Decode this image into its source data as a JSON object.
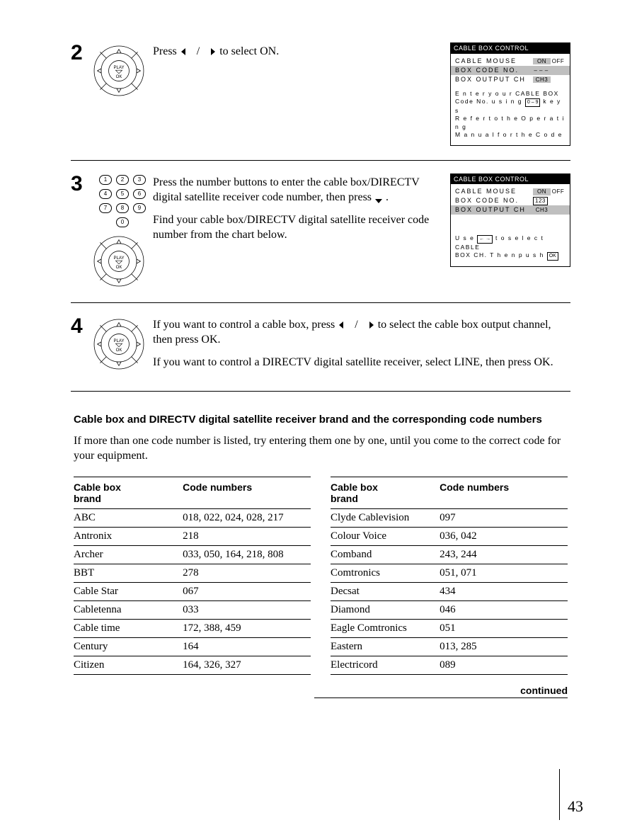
{
  "steps": {
    "s2": {
      "num": "2",
      "text1_a": "Press ",
      "text1_b": " to select ON.",
      "separator": "/"
    },
    "s3": {
      "num": "3",
      "text1_a": "Press the number buttons to enter the cable box/DIRECTV digital satellite receiver code number, then press ",
      "text1_b": ".",
      "text2": "Find your cable box/DIRECTV digital satellite receiver code number from the chart below."
    },
    "s4": {
      "num": "4",
      "text1_a": "If you want to control a cable box, press ",
      "text1_b": " to select the cable box output channel, then press OK.",
      "separator": "/",
      "text2": "If you want to control a DIRECTV digital satellite receiver, select LINE, then press OK."
    }
  },
  "screens": {
    "a": {
      "title": "CABLE  BOX  CONTROL",
      "rows": [
        {
          "label": "CABLE  MOUSE",
          "v1": "ON",
          "v2": "OFF",
          "hl": false,
          "hl_v1": true
        },
        {
          "label": "BOX  CODE  NO.",
          "v1": "– – –",
          "v2": "",
          "hl": true,
          "hl_v1": false
        },
        {
          "label": "BOX  OUTPUT  CH",
          "v1": "CH3",
          "v2": "",
          "hl": false,
          "hl_v1": true
        }
      ],
      "hint_lines": [
        "E n t e r   y o u r   CABLE BOX",
        "Code No.   u s i n g  | 0 – 9 |  k e y s",
        "R e f e r   t o   t h e   O p e r a t i n g",
        "M a n u a l   f o r   t h e   C o d e"
      ]
    },
    "b": {
      "title": "CABLE  BOX  CONTROL",
      "rows": [
        {
          "label": "CABLE  MOUSE",
          "v1": "ON",
          "v2": "OFF",
          "hl": false,
          "hl_v1": true
        },
        {
          "label": "BOX  CODE  NO.",
          "v1": "123",
          "v2": "",
          "hl": false,
          "hl_v1": true,
          "boxed": true
        },
        {
          "label": "BOX  OUTPUT  CH",
          "v1": "CH3",
          "v2": "",
          "hl": true,
          "hl_v1": true
        }
      ],
      "hint_lines": [
        "U s e  |← →|  t o   s e l e c t   CABLE",
        "BOX   CH.  T h e n   p u s h  |OK|"
      ]
    }
  },
  "dpad": {
    "label_top": "PLAY",
    "label_bottom": "OK"
  },
  "numpad": [
    "1",
    "2",
    "3",
    "4",
    "5",
    "6",
    "7",
    "8",
    "9",
    "0"
  ],
  "section": {
    "heading": "Cable box and DIRECTV digital satellite receiver brand and the corresponding code numbers",
    "sub": "If more than one code number is listed, try entering them one by one, until you come to the correct code for your equipment."
  },
  "tables": {
    "headers": [
      "Cable box brand",
      "Code numbers"
    ],
    "left": [
      [
        "ABC",
        "018, 022, 024, 028, 217"
      ],
      [
        "Antronix",
        "218"
      ],
      [
        "Archer",
        "033, 050, 164, 218, 808"
      ],
      [
        "BBT",
        "278"
      ],
      [
        "Cable Star",
        "067"
      ],
      [
        "Cabletenna",
        "033"
      ],
      [
        "Cable time",
        "172, 388, 459"
      ],
      [
        "Century",
        "164"
      ],
      [
        "Citizen",
        "164, 326, 327"
      ]
    ],
    "right": [
      [
        "Clyde Cablevision",
        "097"
      ],
      [
        "Colour Voice",
        "036, 042"
      ],
      [
        "Comband",
        "243, 244"
      ],
      [
        "Comtronics",
        "051, 071"
      ],
      [
        "Decsat",
        "434"
      ],
      [
        "Diamond",
        "046"
      ],
      [
        "Eagle Comtronics",
        "051"
      ],
      [
        "Eastern",
        "013, 285"
      ],
      [
        "Electricord",
        "089"
      ]
    ]
  },
  "footer": {
    "continued": "continued",
    "page": "43"
  }
}
